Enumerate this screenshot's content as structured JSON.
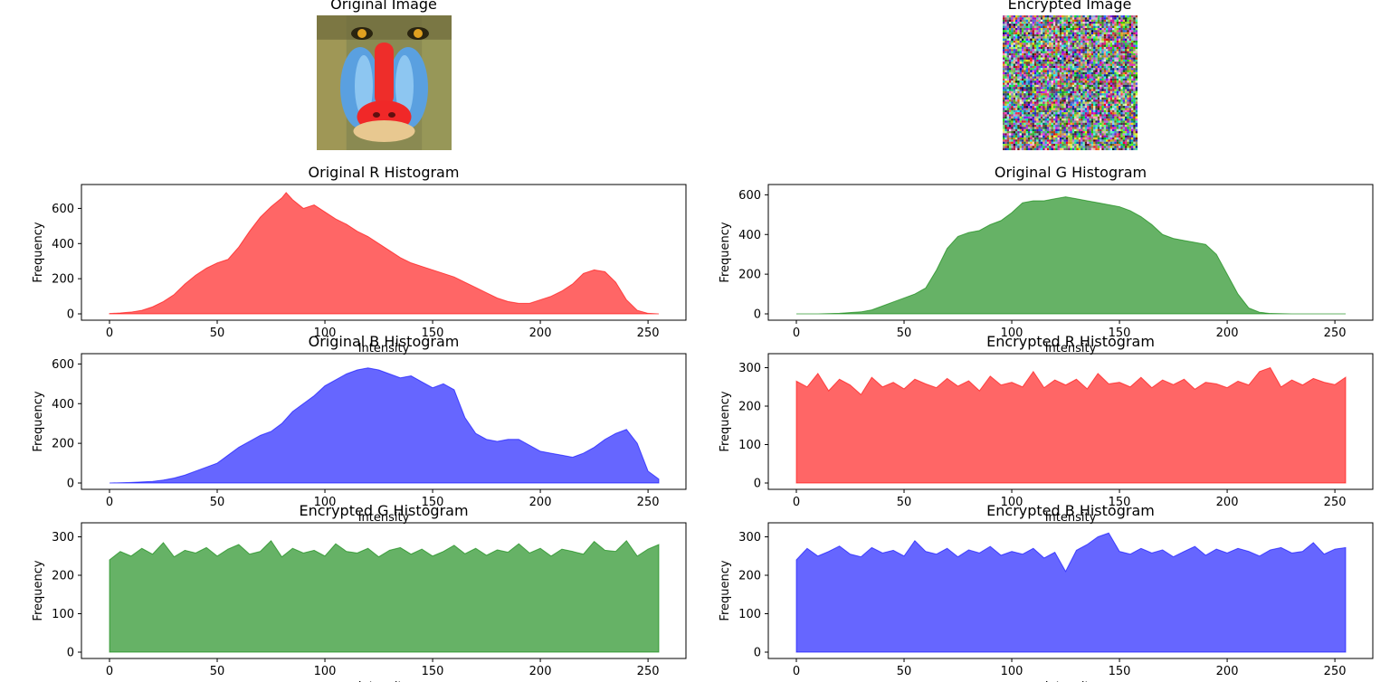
{
  "images": [
    {
      "title": "Original Image",
      "kind": "mandrill"
    },
    {
      "title": "Encrypted Image",
      "kind": "noise"
    }
  ],
  "chart_data": [
    {
      "type": "area",
      "title": "Original R Histogram",
      "color": "#ff0000",
      "xlabel": "Intensity",
      "ylabel": "Frequency",
      "xlim": [
        0,
        255
      ],
      "ylim": [
        0,
        700
      ],
      "xticks": [
        0,
        50,
        100,
        150,
        200,
        250
      ],
      "yticks": [
        0,
        200,
        400,
        600
      ],
      "series": [
        {
          "x": [
            0,
            5,
            10,
            15,
            20,
            25,
            30,
            35,
            40,
            45,
            50,
            55,
            60,
            65,
            70,
            75,
            80,
            82,
            85,
            90,
            95,
            100,
            105,
            110,
            115,
            120,
            125,
            130,
            135,
            140,
            145,
            150,
            155,
            160,
            165,
            170,
            175,
            180,
            185,
            190,
            195,
            200,
            205,
            210,
            215,
            220,
            225,
            230,
            235,
            240,
            245,
            250,
            255
          ],
          "values": [
            2,
            5,
            10,
            20,
            40,
            70,
            110,
            170,
            220,
            260,
            290,
            310,
            380,
            470,
            550,
            610,
            660,
            690,
            650,
            600,
            620,
            580,
            540,
            510,
            470,
            440,
            400,
            360,
            320,
            290,
            270,
            250,
            230,
            210,
            180,
            150,
            120,
            90,
            70,
            60,
            60,
            80,
            100,
            130,
            170,
            230,
            250,
            240,
            180,
            80,
            20,
            3,
            0
          ]
        }
      ]
    },
    {
      "type": "area",
      "title": "Original G Histogram",
      "color": "#008000",
      "xlabel": "Intensity",
      "ylabel": "Frequency",
      "xlim": [
        0,
        255
      ],
      "ylim": [
        0,
        620
      ],
      "xticks": [
        0,
        50,
        100,
        150,
        200,
        250
      ],
      "yticks": [
        0,
        200,
        400,
        600
      ],
      "series": [
        {
          "x": [
            0,
            10,
            20,
            30,
            35,
            40,
            45,
            50,
            55,
            60,
            65,
            70,
            75,
            80,
            85,
            90,
            95,
            100,
            105,
            110,
            115,
            120,
            125,
            130,
            135,
            140,
            145,
            150,
            155,
            160,
            165,
            170,
            175,
            180,
            185,
            190,
            195,
            200,
            205,
            210,
            215,
            220,
            230,
            240,
            255
          ],
          "values": [
            0,
            0,
            3,
            10,
            20,
            40,
            60,
            80,
            100,
            130,
            220,
            330,
            390,
            410,
            420,
            450,
            470,
            510,
            560,
            570,
            570,
            580,
            590,
            580,
            570,
            560,
            550,
            540,
            520,
            490,
            450,
            400,
            380,
            370,
            360,
            350,
            300,
            200,
            100,
            30,
            8,
            2,
            0,
            0,
            0
          ]
        }
      ]
    },
    {
      "type": "area",
      "title": "Original B Histogram",
      "color": "#0000ff",
      "xlabel": "Intensity",
      "ylabel": "Frequency",
      "xlim": [
        0,
        255
      ],
      "ylim": [
        0,
        620
      ],
      "xticks": [
        0,
        50,
        100,
        150,
        200,
        250
      ],
      "yticks": [
        0,
        200,
        400,
        600
      ],
      "series": [
        {
          "x": [
            0,
            10,
            20,
            25,
            30,
            35,
            40,
            45,
            50,
            55,
            60,
            65,
            70,
            75,
            80,
            85,
            90,
            95,
            100,
            105,
            110,
            115,
            120,
            125,
            130,
            135,
            140,
            145,
            150,
            155,
            160,
            165,
            170,
            175,
            180,
            185,
            190,
            195,
            200,
            205,
            210,
            215,
            220,
            225,
            230,
            235,
            240,
            245,
            250,
            255
          ],
          "values": [
            0,
            3,
            8,
            15,
            25,
            40,
            60,
            80,
            100,
            140,
            180,
            210,
            240,
            260,
            300,
            360,
            400,
            440,
            490,
            520,
            550,
            570,
            580,
            570,
            550,
            530,
            540,
            510,
            480,
            500,
            470,
            330,
            250,
            220,
            210,
            220,
            220,
            190,
            160,
            150,
            140,
            130,
            150,
            180,
            220,
            250,
            270,
            200,
            60,
            20
          ]
        }
      ]
    },
    {
      "type": "area",
      "title": "Encrypted R Histogram",
      "color": "#ff0000",
      "xlabel": "Intensity",
      "ylabel": "Frequency",
      "xlim": [
        0,
        255
      ],
      "ylim": [
        0,
        320
      ],
      "xticks": [
        0,
        50,
        100,
        150,
        200,
        250
      ],
      "yticks": [
        0,
        100,
        200,
        300
      ],
      "series": [
        {
          "x": [
            0,
            5,
            10,
            15,
            20,
            25,
            30,
            35,
            40,
            45,
            50,
            55,
            60,
            65,
            70,
            75,
            80,
            85,
            90,
            95,
            100,
            105,
            110,
            115,
            120,
            125,
            130,
            135,
            140,
            145,
            150,
            155,
            160,
            165,
            170,
            175,
            180,
            185,
            190,
            195,
            200,
            205,
            210,
            215,
            220,
            225,
            230,
            235,
            240,
            245,
            250,
            255
          ],
          "values": [
            265,
            250,
            285,
            240,
            270,
            255,
            230,
            275,
            250,
            262,
            245,
            270,
            258,
            248,
            272,
            252,
            266,
            240,
            278,
            255,
            262,
            250,
            290,
            248,
            268,
            255,
            270,
            245,
            285,
            258,
            262,
            250,
            275,
            248,
            268,
            256,
            270,
            244,
            262,
            258,
            248,
            265,
            255,
            290,
            300,
            250,
            268,
            255,
            272,
            262,
            256,
            275
          ]
        }
      ]
    },
    {
      "type": "area",
      "title": "Encrypted G Histogram",
      "color": "#008000",
      "xlabel": "Intensity",
      "ylabel": "Frequency",
      "xlim": [
        0,
        255
      ],
      "ylim": [
        0,
        320
      ],
      "xticks": [
        0,
        50,
        100,
        150,
        200,
        250
      ],
      "yticks": [
        0,
        100,
        200,
        300
      ],
      "series": [
        {
          "x": [
            0,
            5,
            10,
            15,
            20,
            25,
            30,
            35,
            40,
            45,
            50,
            55,
            60,
            65,
            70,
            75,
            80,
            85,
            90,
            95,
            100,
            105,
            110,
            115,
            120,
            125,
            130,
            135,
            140,
            145,
            150,
            155,
            160,
            165,
            170,
            175,
            180,
            185,
            190,
            195,
            200,
            205,
            210,
            215,
            220,
            225,
            230,
            235,
            240,
            245,
            250,
            255
          ],
          "values": [
            240,
            262,
            250,
            270,
            255,
            285,
            248,
            265,
            258,
            272,
            250,
            268,
            280,
            255,
            262,
            290,
            248,
            270,
            258,
            265,
            250,
            282,
            262,
            258,
            270,
            248,
            265,
            272,
            255,
            268,
            250,
            262,
            278,
            256,
            270,
            252,
            266,
            260,
            282,
            258,
            270,
            250,
            268,
            262,
            255,
            288,
            265,
            262,
            290,
            250,
            268,
            280
          ]
        }
      ]
    },
    {
      "type": "area",
      "title": "Encrypted B Histogram",
      "color": "#0000ff",
      "xlabel": "Intensity",
      "ylabel": "Frequency",
      "xlim": [
        0,
        255
      ],
      "ylim": [
        0,
        320
      ],
      "xticks": [
        0,
        50,
        100,
        150,
        200,
        250
      ],
      "yticks": [
        0,
        100,
        200,
        300
      ],
      "series": [
        {
          "x": [
            0,
            5,
            10,
            15,
            20,
            25,
            30,
            35,
            40,
            45,
            50,
            55,
            60,
            65,
            70,
            75,
            80,
            85,
            90,
            95,
            100,
            105,
            110,
            115,
            120,
            125,
            130,
            135,
            140,
            145,
            150,
            155,
            160,
            165,
            170,
            175,
            180,
            185,
            190,
            195,
            200,
            205,
            210,
            215,
            220,
            225,
            230,
            235,
            240,
            245,
            250,
            255
          ],
          "values": [
            240,
            270,
            250,
            262,
            276,
            255,
            248,
            272,
            258,
            265,
            250,
            290,
            262,
            255,
            270,
            248,
            266,
            258,
            275,
            252,
            262,
            255,
            270,
            245,
            260,
            210,
            265,
            280,
            300,
            310,
            262,
            255,
            270,
            258,
            266,
            248,
            262,
            275,
            252,
            268,
            258,
            270,
            262,
            250,
            266,
            272,
            258,
            262,
            285,
            255,
            268,
            272
          ]
        }
      ]
    }
  ]
}
